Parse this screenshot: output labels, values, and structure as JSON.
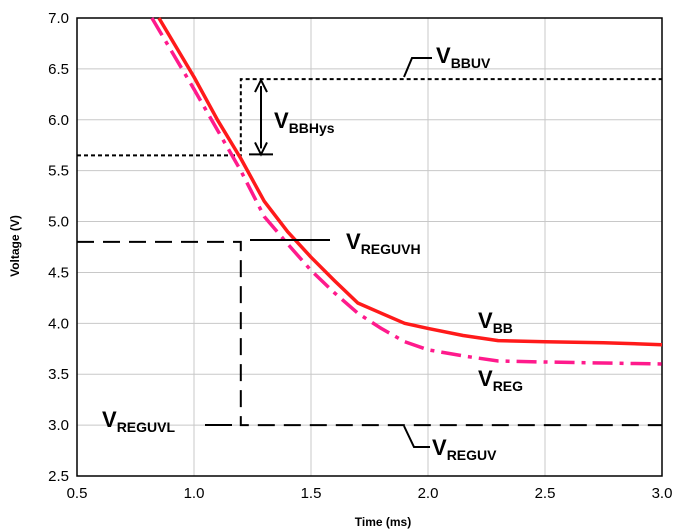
{
  "chart_data": {
    "type": "line",
    "title": "",
    "xlabel": "Time (ms)",
    "ylabel": "Voltage (V)",
    "xlim": [
      0.5,
      3.0
    ],
    "ylim": [
      2.5,
      7.0
    ],
    "x_ticks": [
      "0.5",
      "1.0",
      "1.5",
      "2.0",
      "2.5",
      "3.0"
    ],
    "y_ticks": [
      "2.5",
      "3.0",
      "3.5",
      "4.0",
      "4.5",
      "5.0",
      "5.5",
      "6.0",
      "6.5",
      "7.0"
    ],
    "grid": true,
    "series": [
      {
        "style": "solid",
        "color": "#ff1a1a",
        "x": [
          0.85,
          1.0,
          1.1,
          1.2,
          1.3,
          1.4,
          1.5,
          1.6,
          1.7,
          1.8,
          1.9,
          2.0,
          2.15,
          2.3,
          2.5,
          2.75,
          3.0
        ],
        "y": [
          7.0,
          6.42,
          6.0,
          5.62,
          5.2,
          4.9,
          4.65,
          4.42,
          4.2,
          4.1,
          4.0,
          3.95,
          3.88,
          3.83,
          3.82,
          3.81,
          3.79
        ]
      },
      {
        "style": "dash-dot",
        "color": "#ff1a8c",
        "x": [
          0.82,
          1.0,
          1.1,
          1.2,
          1.3,
          1.4,
          1.5,
          1.6,
          1.7,
          1.8,
          1.9,
          2.0,
          2.15,
          2.3,
          2.5,
          2.75,
          3.0
        ],
        "y": [
          7.0,
          6.3,
          5.9,
          5.5,
          5.05,
          4.78,
          4.52,
          4.3,
          4.1,
          3.95,
          3.82,
          3.74,
          3.68,
          3.63,
          3.62,
          3.61,
          3.6
        ]
      }
    ],
    "reference_lines": {
      "bbuv": {
        "style": "short-dash",
        "y_upper": 6.4,
        "y_lower": 5.65,
        "x_start": 0.5,
        "x_step": 1.2
      },
      "reg": {
        "style": "long-dash",
        "y_upper": 4.8,
        "y_lower": 3.0,
        "x_step": 1.2
      }
    },
    "annotations": {
      "vbbuv": {
        "main": "V",
        "sub": "BBUV"
      },
      "vbbhys": {
        "main": "V",
        "sub": "BBHys"
      },
      "vreguvh": {
        "main": "V",
        "sub": "REGUVH"
      },
      "vbb": {
        "main": "V",
        "sub": "BB"
      },
      "vreg": {
        "main": "V",
        "sub": "REG"
      },
      "vreguvl": {
        "main": "V",
        "sub": "REGUVL"
      },
      "vreguv": {
        "main": "V",
        "sub": "REGUV"
      }
    }
  }
}
